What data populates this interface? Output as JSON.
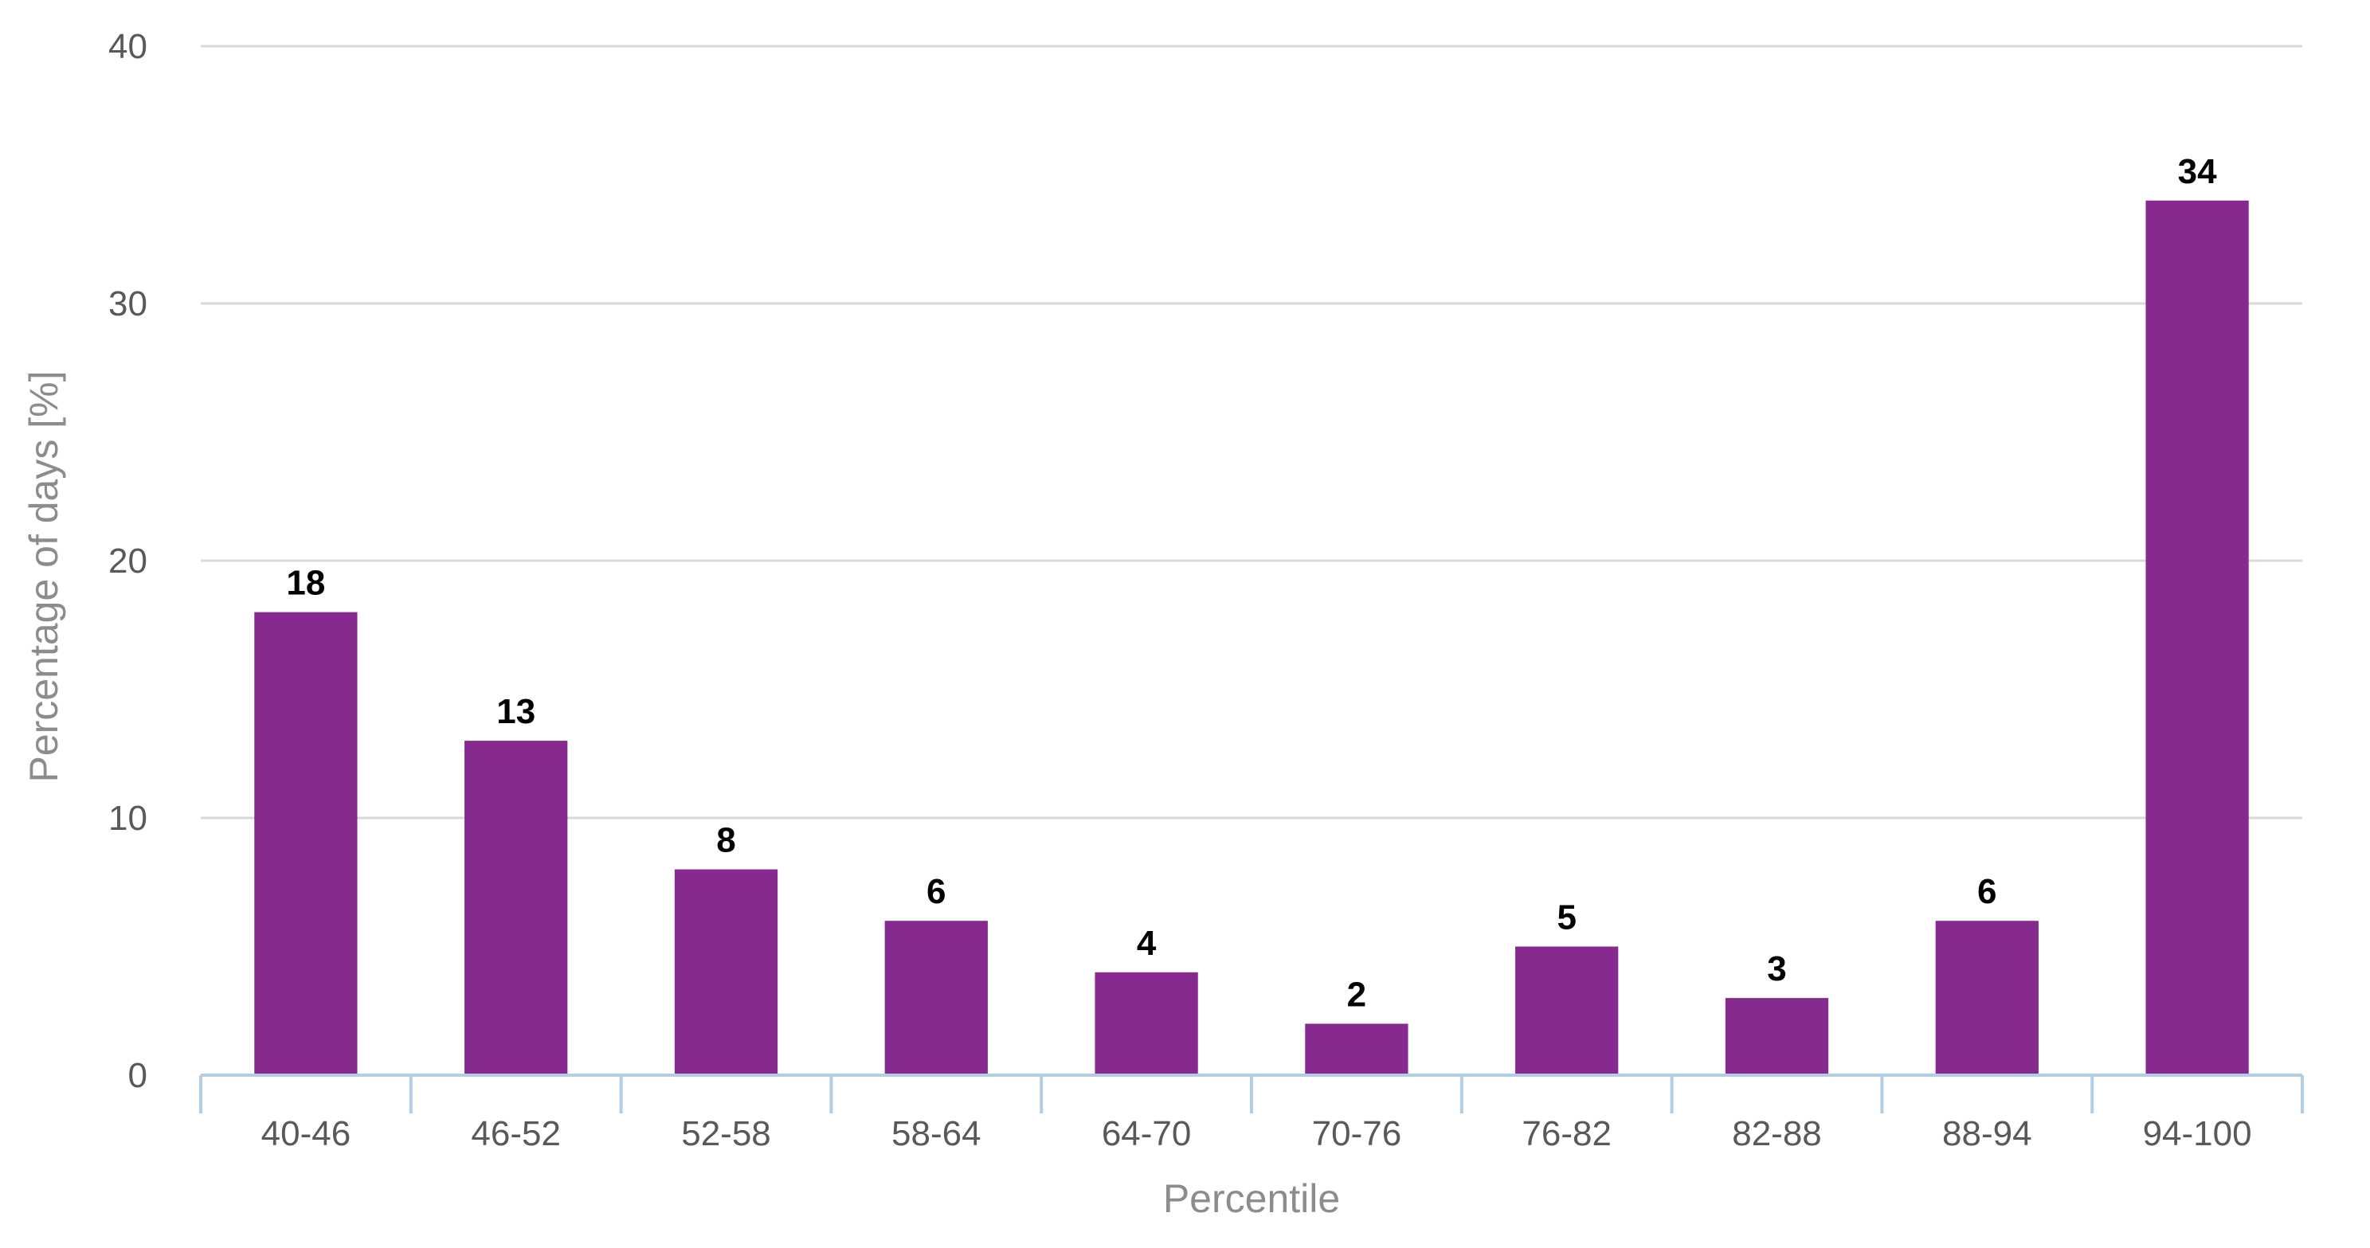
{
  "chart_data": {
    "type": "bar",
    "categories": [
      "40-46",
      "46-52",
      "52-58",
      "58-64",
      "64-70",
      "70-76",
      "76-82",
      "82-88",
      "88-94",
      "94-100"
    ],
    "values": [
      18,
      13,
      8,
      6,
      4,
      2,
      5,
      3,
      6,
      34
    ],
    "data_labels": [
      "18",
      "13",
      "8",
      "6",
      "4",
      "2",
      "5",
      "3",
      "6",
      "34"
    ],
    "title": "",
    "xlabel": "Percentile",
    "ylabel": "Percentage of days [%]",
    "ylim": [
      0,
      40
    ],
    "yticks": [
      0,
      10,
      20,
      30,
      40
    ],
    "ytick_labels": [
      "0",
      "10",
      "20",
      "30",
      "40"
    ],
    "grid": true,
    "legend": "none",
    "bar_color": "#862a90"
  }
}
